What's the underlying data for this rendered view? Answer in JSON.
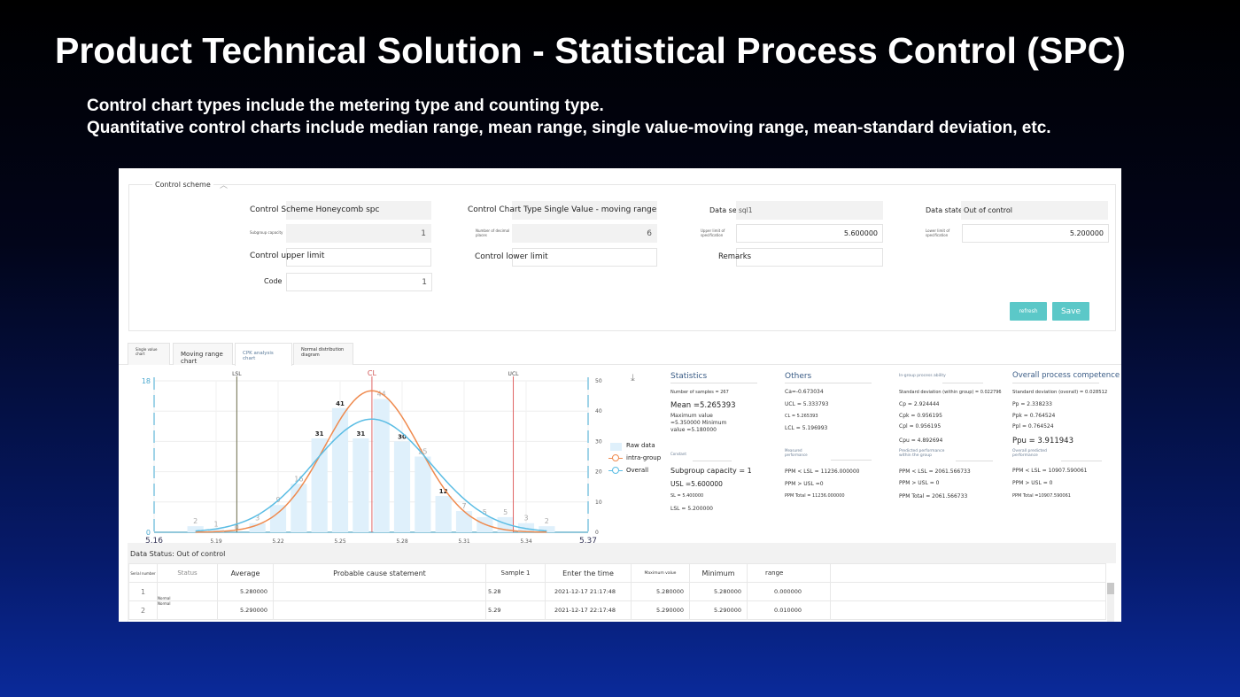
{
  "slide": {
    "title": "Product Technical Solution - Statistical Process Control (SPC)",
    "subtitle_lines": [
      "Control chart types include the metering type and counting type.",
      "Quantitative control charts include median range, mean range, single value-moving range, mean-standard deviation, etc."
    ]
  },
  "form": {
    "section_label": "Control scheme",
    "scheme_label": "Control Scheme",
    "scheme_value": "Honeycomb spc",
    "chart_type_label": "Control Chart Type",
    "chart_type_value": "Single Value - moving range",
    "dataset_label": "Data set",
    "dataset_value": "sql1",
    "datastate_label": "Data state",
    "datastate_value": "Out of control",
    "subgroup_label": "Subgroup capacity",
    "subgroup_value": "1",
    "decimals_label": "Number of decimal places",
    "decimals_value": "6",
    "usl_label": "Upper limit of specification",
    "usl_value": "5.600000",
    "lsl_label": "Lower limit of specification",
    "lsl_value": "5.200000",
    "ucl_label": "Control upper limit",
    "lcl_label": "Control lower limit",
    "remarks_label": "Remarks",
    "code_label": "Code",
    "code_value": "1",
    "refresh": "refresh",
    "save": "Save"
  },
  "tabs": [
    {
      "label": "Single value chart"
    },
    {
      "label": "Moving range chart"
    },
    {
      "label": "CPK analysis chart",
      "active": true
    },
    {
      "label": "Normal distribution diagram"
    }
  ],
  "chart_data": {
    "type": "bar",
    "x_ticks": [
      "5.16",
      "5.19",
      "5.22",
      "5.25",
      "5.28",
      "5.31",
      "5.34",
      "5.37"
    ],
    "xlim": [
      5.16,
      5.37
    ],
    "ylim_left": [
      0,
      18
    ],
    "ylim_right": [
      0,
      50
    ],
    "left_ticks": [
      "0",
      "18"
    ],
    "right_ticks": [
      "0",
      "10",
      "20",
      "30",
      "40",
      "50"
    ],
    "bins": [
      5.18,
      5.19,
      5.2,
      5.21,
      5.22,
      5.23,
      5.24,
      5.25,
      5.26,
      5.27,
      5.28,
      5.29,
      5.3,
      5.31,
      5.32,
      5.33,
      5.34,
      5.35
    ],
    "values": [
      2,
      1,
      0,
      3,
      9,
      16,
      31,
      41,
      31,
      44,
      30,
      25,
      12,
      7,
      5,
      5,
      3,
      2
    ],
    "ref_lines": [
      {
        "name": "LSL",
        "x": 5.2,
        "color": "#6b6b4a"
      },
      {
        "name": "CL",
        "x": 5.265393,
        "color": "#e06666"
      },
      {
        "name": "UCL",
        "x": 5.333793,
        "color": "#e06666"
      }
    ],
    "series": [
      {
        "name": "Raw data",
        "color": "#dff0fb"
      },
      {
        "name": "intra-group",
        "type": "normal-curve",
        "mean": 5.265393,
        "sd": 0.022796,
        "color": "#ef8a4e"
      },
      {
        "name": "Overall",
        "type": "normal-curve",
        "mean": 5.265393,
        "sd": 0.028512,
        "color": "#5bbde4"
      }
    ],
    "grid": true,
    "legend": "right"
  },
  "stats": {
    "statistics": {
      "title": "Statistics",
      "samples": "Number of samples = 267",
      "mean": "Mean =5.265393",
      "maxmin": [
        "Maximum value",
        "=5.350000 Minimum",
        "value =5.180000"
      ]
    },
    "constant": {
      "title": "Constant",
      "subgroup": "Subgroup capacity = 1",
      "usl": "USL =5.600000",
      "sl": "SL = 5.400000",
      "lsl": "LSL = 5.200000"
    },
    "others": {
      "title": "Others",
      "ca": "Ca=-0.673034",
      "ucl": "UCL = 5.333793",
      "cl": "CL = 5.265393",
      "lcl": "LCL = 5.196993"
    },
    "measured": {
      "title": "Measured performance",
      "ppm_lsl": "PPM < LSL = 11236.000000",
      "ppm_usl": "PPM > USL =0",
      "ppm_total": "PPM Total = 11236.000000"
    },
    "ingroup": {
      "title": "In-group process ability",
      "sd": "Standard deviation (within group) = 0.022796",
      "cp": "Cp = 2.924444",
      "cpk": "Cpk = 0.956195",
      "cpl": "Cpl = 0.956195",
      "cpu": "Cpu = 4.892694"
    },
    "predicted": {
      "title": "Predicted performance within the group",
      "ppm_lsl": "PPM < LSL = 2061.566733",
      "ppm_usl": "PPM > USL = 0",
      "ppm_total": "PPM Total = 2061.566733"
    },
    "overall": {
      "title": "Overall process competence",
      "sd": "Standard deviation (overall) = 0.028512",
      "pp": "Pp = 2.338233",
      "ppk": "Ppk = 0.764524",
      "ppl": "Ppl = 0.764524",
      "ppu": "Ppu = 3.911943"
    },
    "overall_pred": {
      "title": "Overall predicted performance",
      "ppm_lsl": "PPM < LSL = 10907.590061",
      "ppm_usl": "PPM > USL = 0",
      "ppm_total": "PPM Total =10907.590061"
    }
  },
  "table": {
    "status_text": "Data Status: Out of control",
    "headers": [
      "Serial number",
      "Status",
      "Average",
      "Probable cause statement",
      "Sample 1",
      "Enter the time",
      "Maximum value",
      "Minimum",
      "range"
    ],
    "rows": [
      [
        "1",
        "Normal",
        "5.280000",
        "",
        "5.28",
        "2021-12-17 21:17:48",
        "5.280000",
        "5.280000",
        "0.000000"
      ],
      [
        "2",
        "Normal",
        "5.290000",
        "",
        "5.29",
        "2021-12-17 22:17:48",
        "5.290000",
        "5.290000",
        "0.010000"
      ]
    ]
  }
}
